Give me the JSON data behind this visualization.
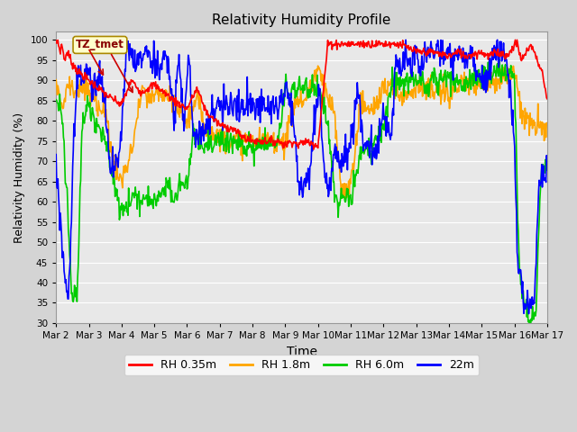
{
  "title": "Relativity Humidity Profile",
  "xlabel": "Time",
  "ylabel": "Relativity Humidity (%)",
  "ylim": [
    30,
    102
  ],
  "yticks": [
    30,
    35,
    40,
    45,
    50,
    55,
    60,
    65,
    70,
    75,
    80,
    85,
    90,
    95,
    100
  ],
  "colors": {
    "RH 0.35m": "#ff0000",
    "RH 1.8m": "#ffa500",
    "RH 6.0m": "#00cc00",
    "22m": "#0000ff"
  },
  "line_width": 1.2,
  "annotation_text": "TZ_tmet",
  "grid_color": "#ffffff",
  "fig_bg": "#d4d4d4",
  "ax_bg": "#e8e8e8"
}
